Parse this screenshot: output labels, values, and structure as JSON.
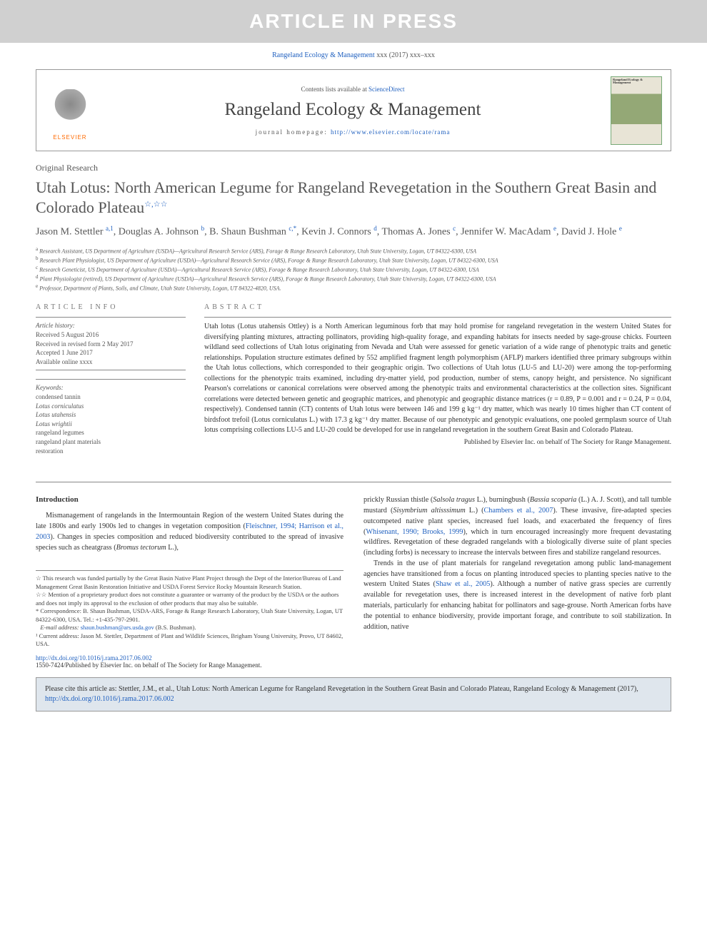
{
  "banner": "ARTICLE IN PRESS",
  "topCitation": {
    "journal": "Rangeland Ecology & Management",
    "text": " xxx (2017) xxx–xxx"
  },
  "header": {
    "contentsText": "Contents lists available at ",
    "contentsLink": "ScienceDirect",
    "journalName": "Rangeland Ecology & Management",
    "homepageLabel": "journal homepage: ",
    "homepageUrl": "http://www.elsevier.com/locate/rama",
    "elsevierLabel": "ELSEVIER",
    "coverTitle": "Rangeland Ecology & Management"
  },
  "articleType": "Original Research",
  "title": "Utah Lotus: North American Legume for Rangeland Revegetation in the Southern Great Basin and Colorado Plateau",
  "titleStars": "☆,☆☆",
  "authors": "Jason M. Stettler <sup>a,1</sup>, Douglas A. Johnson <sup>b</sup>, B. Shaun Bushman <sup>c,*</sup>, Kevin J. Connors <sup>d</sup>, Thomas A. Jones <sup>c</sup>, Jennifer W. MacAdam <sup>e</sup>, David J. Hole <sup>e</sup>",
  "affiliations": [
    "a Research Assistant, US Department of Agriculture (USDA)—Agricultural Research Service (ARS), Forage & Range Research Laboratory, Utah State University, Logan, UT 84322-6300, USA",
    "b Research Plant Physiologist, US Department of Agriculture (USDA)—Agricultural Research Service (ARS), Forage & Range Research Laboratory, Utah State University, Logan, UT 84322-6300, USA",
    "c Research Geneticist, US Department of Agriculture (USDA)—Agricultural Research Service (ARS), Forage & Range Research Laboratory, Utah State University, Logan, UT 84322-6300, USA",
    "d Plant Physiologist (retired), US Department of Agriculture (USDA)—Agricultural Research Service (ARS), Forage & Range Research Laboratory, Utah State University, Logan, UT 84322-6300, USA",
    "e Professor, Department of Plants, Soils, and Climate, Utah State University, Logan, UT 84322-4820, USA."
  ],
  "articleInfo": {
    "label": "ARTICLE INFO",
    "historyHeading": "Article history:",
    "history": [
      "Received 5 August 2016",
      "Received in revised form 2 May 2017",
      "Accepted 1 June 2017",
      "Available online xxxx"
    ],
    "keywordsHeading": "Keywords:",
    "keywords": [
      "condensed tannin",
      "Lotus corniculatus",
      "Lotus utahensis",
      "Lotus wrightii",
      "rangeland legumes",
      "rangeland plant materials",
      "restoration"
    ]
  },
  "abstract": {
    "label": "ABSTRACT",
    "text": "Utah lotus (Lotus utahensis Ottley) is a North American leguminous forb that may hold promise for rangeland revegetation in the western United States for diversifying planting mixtures, attracting pollinators, providing high-quality forage, and expanding habitats for insects needed by sage-grouse chicks. Fourteen wildland seed collections of Utah lotus originating from Nevada and Utah were assessed for genetic variation of a wide range of phenotypic traits and genetic relationships. Population structure estimates defined by 552 amplified fragment length polymorphism (AFLP) markers identified three primary subgroups within the Utah lotus collections, which corresponded to their geographic origin. Two collections of Utah lotus (LU-5 and LU-20) were among the top-performing collections for the phenotypic traits examined, including dry-matter yield, pod production, number of stems, canopy height, and persistence. No significant Pearson's correlations or canonical correlations were observed among the phenotypic traits and environmental characteristics at the collection sites. Significant correlations were detected between genetic and geographic matrices, and phenotypic and geographic distance matrices (r = 0.89, P = 0.001 and r = 0.24, P = 0.04, respectively). Condensed tannin (CT) contents of Utah lotus were between 146 and 199 g kg⁻¹ dry matter, which was nearly 10 times higher than CT content of birdsfoot trefoil (Lotus corniculatus L.) with 17.3 g kg⁻¹ dry matter. Because of our phenotypic and genotypic evaluations, one pooled germplasm source of Utah lotus comprising collections LU-5 and LU-20 could be developed for use in rangeland revegetation in the southern Great Basin and Colorado Plateau.",
    "publisher": "Published by Elsevier Inc. on behalf of The Society for Range Management."
  },
  "introduction": {
    "heading": "Introduction",
    "leftPara": "Mismanagement of rangelands in the Intermountain Region of the western United States during the late 1800s and early 1900s led to changes in vegetation composition (Fleischner, 1994; Harrison et al., 2003). Changes in species composition and reduced biodiversity contributed to the spread of invasive species such as cheatgrass (Bromus tectorum L.),",
    "rightPara1": "prickly Russian thistle (Salsola tragus L.), burningbush (Bassia scoparia (L.) A. J. Scott), and tall tumble mustard (Sisymbrium altisssimum L.) (Chambers et al., 2007). These invasive, fire-adapted species outcompeted native plant species, increased fuel loads, and exacerbated the frequency of fires (Whisenant, 1990; Brooks, 1999), which in turn encouraged increasingly more frequent devastating wildfires. Revegetation of these degraded rangelands with a biologically diverse suite of plant species (including forbs) is necessary to increase the intervals between fires and stabilize rangeland resources.",
    "rightPara2": "Trends in the use of plant materials for rangeland revegetation among public land-management agencies have transitioned from a focus on planting introduced species to planting species native to the western United States (Shaw et al., 2005). Although a number of native grass species are currently available for revegetation uses, there is increased interest in the development of native forb plant materials, particularly for enhancing habitat for pollinators and sage-grouse. North American forbs have the potential to enhance biodiversity, provide important forage, and contribute to soil stabilization. In addition, native"
  },
  "footnotes": {
    "n1": "☆  This research was funded partially by the Great Basin Native Plant Project through the Dept of the Interior/Bureau of Land Management Great Basin Restoration Initiative and USDA Forest Service Rocky Mountain Research Station.",
    "n2": "☆☆  Mention of a proprietary product does not constitute a guarantee or warranty of the product by the USDA or the authors and does not imply its approval to the exclusion of other products that may also be suitable.",
    "corr": "*  Correspondence: B. Shaun Bushman, USDA-ARS, Forage & Range Research Laboratory, Utah State University, Logan, UT 84322-6300, USA. Tel.: +1-435-797-2901.",
    "emailLabel": "E-mail address: ",
    "email": "shaun.bushman@ars.usda.gov",
    "emailTail": " (B.S. Bushman).",
    "curr": "¹  Current address: Jason M. Stettler, Department of Plant and Wildlife Sciences, Brigham Young University, Provo, UT 84602, USA."
  },
  "doi": {
    "url": "http://dx.doi.org/10.1016/j.rama.2017.06.002",
    "copyright": "1550-7424/Published by Elsevier Inc. on behalf of The Society for Range Management."
  },
  "citeBox": {
    "prefix": "Please cite this article as: Stettler, J.M., et al., Utah Lotus: North American Legume for Rangeland Revegetation in the Southern Great Basin and Colorado Plateau, Rangeland Ecology & Management (2017), ",
    "url": "http://dx.doi.org/10.1016/j.rama.2017.06.002"
  },
  "colors": {
    "link": "#1e5fbf",
    "bannerBg": "#d0d0d0",
    "bannerText": "#ffffff",
    "bodyText": "#333333",
    "muted": "#555555",
    "rule": "#888888",
    "citeBoxBg": "#dfe6ed",
    "elsevierOrange": "#ff6a00"
  }
}
